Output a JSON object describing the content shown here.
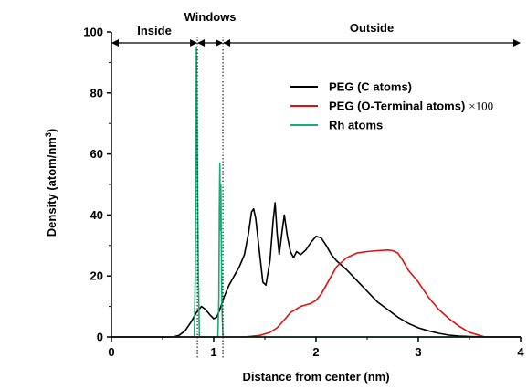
{
  "chart_data": {
    "type": "line",
    "xlabel": "Distance from center (nm)",
    "ylabel_main": "Density (atom/nm",
    "ylabel_sup": "3",
    "ylabel_close": ")",
    "xlim": [
      0,
      4
    ],
    "ylim": [
      0,
      100
    ],
    "xticks": [
      "0",
      "1",
      "2",
      "3",
      "4"
    ],
    "yticks": [
      "0",
      "20",
      "40",
      "60",
      "80",
      "100"
    ],
    "legend_position": "top-right",
    "regions": [
      {
        "label": "Inside",
        "x_start": 0.0,
        "x_end": 0.84
      },
      {
        "label": "Windows",
        "x_start": 0.84,
        "x_end": 1.09
      },
      {
        "label": "Outside",
        "x_start": 1.09,
        "x_end": 4.0
      }
    ],
    "window_boundaries": [
      0.84,
      1.09
    ],
    "series": [
      {
        "name": "PEG (C atoms)",
        "legend_suffix": "",
        "color": "#000000",
        "x": [
          0.0,
          0.6,
          0.66,
          0.72,
          0.78,
          0.83,
          0.88,
          0.92,
          0.97,
          1.0,
          1.03,
          1.06,
          1.1,
          1.15,
          1.2,
          1.25,
          1.3,
          1.34,
          1.37,
          1.39,
          1.41,
          1.44,
          1.48,
          1.51,
          1.55,
          1.58,
          1.6,
          1.62,
          1.64,
          1.67,
          1.69,
          1.72,
          1.75,
          1.78,
          1.81,
          1.85,
          1.9,
          1.95,
          2.0,
          2.05,
          2.1,
          2.15,
          2.2,
          2.3,
          2.4,
          2.5,
          2.6,
          2.7,
          2.8,
          2.9,
          3.0,
          3.1,
          3.2,
          3.3,
          3.4,
          3.5,
          3.6,
          3.7,
          3.8,
          4.0
        ],
        "y": [
          0,
          0,
          0.5,
          2,
          5,
          8,
          10,
          9,
          7,
          6,
          6.5,
          9,
          13,
          17,
          20,
          23,
          27,
          34,
          41,
          42,
          39,
          30,
          18,
          17,
          25,
          38,
          44,
          34,
          27,
          35,
          40,
          33,
          28,
          26,
          28,
          27,
          28.5,
          31,
          33,
          32.5,
          30,
          27,
          25,
          22,
          18.5,
          15,
          11.5,
          9,
          6.5,
          4.5,
          3,
          2,
          1.2,
          0.6,
          0.3,
          0.15,
          0.05,
          0,
          0,
          0
        ]
      },
      {
        "name": "PEG (O-Terminal atoms)",
        "legend_suffix": "×100",
        "color": "#e01010",
        "x": [
          0.0,
          1.3,
          1.45,
          1.55,
          1.62,
          1.7,
          1.75,
          1.8,
          1.85,
          1.9,
          1.95,
          2.0,
          2.05,
          2.1,
          2.15,
          2.2,
          2.3,
          2.4,
          2.5,
          2.6,
          2.7,
          2.75,
          2.8,
          2.85,
          2.9,
          3.0,
          3.1,
          3.2,
          3.3,
          3.4,
          3.5,
          3.6,
          3.65,
          4.0
        ],
        "y": [
          0,
          0,
          0.5,
          1.5,
          3,
          6,
          8,
          9,
          10,
          10.5,
          11,
          12,
          14,
          17,
          20,
          23,
          26,
          27.5,
          28,
          28.3,
          28.5,
          28.3,
          27.5,
          25,
          22,
          18,
          13,
          9,
          6,
          3.5,
          1.5,
          0.5,
          0,
          0
        ]
      },
      {
        "name": "Rh atoms",
        "legend_suffix": "",
        "color": "#1aa97a",
        "x": [
          0.0,
          0.81,
          0.82,
          0.825,
          0.83,
          0.835,
          0.84,
          0.85,
          0.86,
          1.04,
          1.05,
          1.055,
          1.06,
          1.065,
          1.07,
          1.075,
          1.08,
          1.09,
          4.0
        ],
        "y": [
          0,
          0,
          20,
          50,
          95,
          82,
          60,
          20,
          0,
          0,
          12,
          42,
          57,
          35,
          50,
          27,
          10,
          0,
          0
        ]
      }
    ]
  }
}
